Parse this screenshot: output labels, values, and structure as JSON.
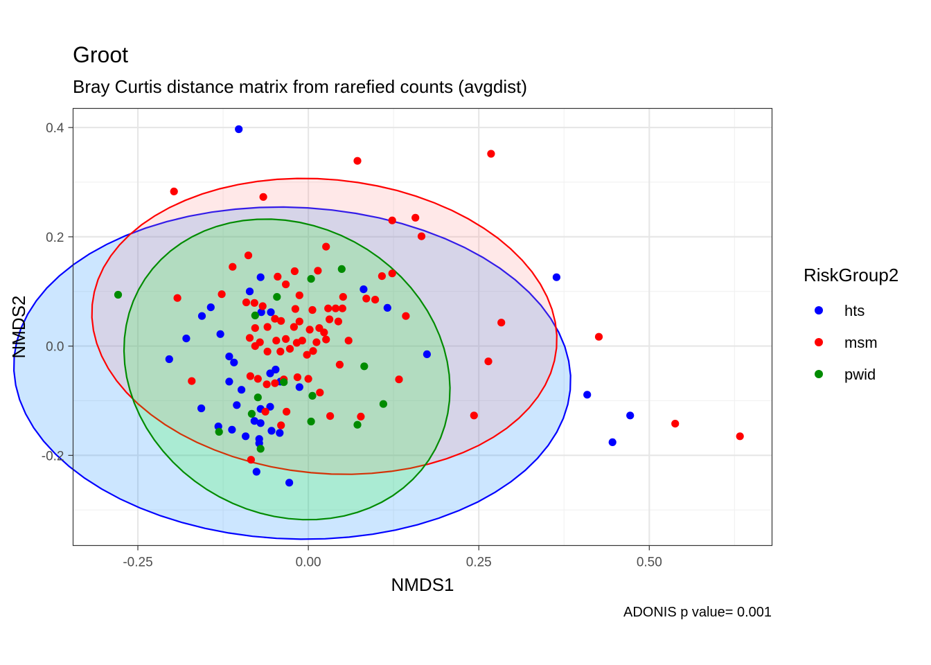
{
  "chart_data": {
    "type": "scatter",
    "title": "Groot",
    "subtitle": "Bray Curtis distance matrix from rarefied counts (avgdist)",
    "xlabel": "NMDS1",
    "ylabel": "NMDS2",
    "caption": "ADONIS p value= 0.001",
    "xlim": [
      -0.345,
      0.68
    ],
    "ylim": [
      -0.365,
      0.435
    ],
    "x_ticks": [
      {
        "value": -0.25,
        "label": "-0.25"
      },
      {
        "value": 0,
        "label": "0.00"
      },
      {
        "value": 0.25,
        "label": "0.25"
      },
      {
        "value": 0.5,
        "label": "0.50"
      }
    ],
    "y_ticks": [
      {
        "value": -0.2,
        "label": "-0.2"
      },
      {
        "value": 0,
        "label": "0.0"
      },
      {
        "value": 0.2,
        "label": "0.2"
      },
      {
        "value": 0.4,
        "label": "0.4"
      }
    ],
    "grid": true,
    "legend": {
      "title": "RiskGroup2",
      "position": "right"
    },
    "series": [
      {
        "name": "hts",
        "color": "#0000ff",
        "points": [
          [
            -0.102,
            0.397
          ],
          [
            -0.086,
            0.1
          ],
          [
            -0.07,
            0.126
          ],
          [
            -0.069,
            0.062
          ],
          [
            -0.055,
            0.062
          ],
          [
            -0.143,
            0.071
          ],
          [
            -0.156,
            0.055
          ],
          [
            -0.179,
            0.014
          ],
          [
            -0.204,
            -0.024
          ],
          [
            -0.129,
            0.022
          ],
          [
            -0.116,
            -0.019
          ],
          [
            -0.109,
            -0.03
          ],
          [
            -0.116,
            -0.065
          ],
          [
            -0.098,
            -0.08
          ],
          [
            -0.105,
            -0.108
          ],
          [
            -0.157,
            -0.114
          ],
          [
            -0.132,
            -0.147
          ],
          [
            -0.112,
            -0.153
          ],
          [
            -0.092,
            -0.165
          ],
          [
            -0.079,
            -0.137
          ],
          [
            -0.07,
            -0.141
          ],
          [
            -0.07,
            -0.115
          ],
          [
            -0.056,
            -0.111
          ],
          [
            -0.056,
            -0.05
          ],
          [
            -0.048,
            -0.043
          ],
          [
            -0.041,
            -0.065
          ],
          [
            -0.013,
            -0.075
          ],
          [
            -0.054,
            -0.155
          ],
          [
            -0.042,
            -0.159
          ],
          [
            -0.072,
            -0.17
          ],
          [
            -0.072,
            -0.178
          ],
          [
            -0.076,
            -0.23
          ],
          [
            -0.028,
            -0.25
          ],
          [
            0.081,
            0.104
          ],
          [
            0.116,
            0.07
          ],
          [
            0.174,
            -0.015
          ],
          [
            0.364,
            0.126
          ],
          [
            0.409,
            -0.089
          ],
          [
            0.472,
            -0.127
          ],
          [
            0.446,
            -0.176
          ]
        ]
      },
      {
        "name": "msm",
        "color": "#ff0000",
        "points": [
          [
            -0.197,
            0.283
          ],
          [
            -0.066,
            0.273
          ],
          [
            0.072,
            0.339
          ],
          [
            0.268,
            0.352
          ],
          [
            0.123,
            0.23
          ],
          [
            0.157,
            0.235
          ],
          [
            0.166,
            0.201
          ],
          [
            0.026,
            0.182
          ],
          [
            -0.111,
            0.145
          ],
          [
            -0.088,
            0.166
          ],
          [
            -0.192,
            0.088
          ],
          [
            -0.171,
            -0.064
          ],
          [
            -0.127,
            0.095
          ],
          [
            -0.091,
            0.08
          ],
          [
            -0.079,
            0.079
          ],
          [
            -0.067,
            0.073
          ],
          [
            -0.045,
            0.127
          ],
          [
            -0.033,
            0.113
          ],
          [
            -0.02,
            0.137
          ],
          [
            0.014,
            0.138
          ],
          [
            -0.013,
            0.093
          ],
          [
            0.006,
            0.066
          ],
          [
            0.029,
            0.069
          ],
          [
            0.04,
            0.069
          ],
          [
            0.05,
            0.069
          ],
          [
            0.051,
            0.09
          ],
          [
            0.085,
            0.087
          ],
          [
            0.098,
            0.085
          ],
          [
            0.108,
            0.128
          ],
          [
            0.123,
            0.133
          ],
          [
            0.143,
            0.055
          ],
          [
            -0.06,
            0.035
          ],
          [
            -0.049,
            0.05
          ],
          [
            -0.04,
            0.046
          ],
          [
            -0.021,
            0.035
          ],
          [
            -0.013,
            0.045
          ],
          [
            0.002,
            0.03
          ],
          [
            0.016,
            0.033
          ],
          [
            0.023,
            0.025
          ],
          [
            0.044,
            0.045
          ],
          [
            -0.086,
            0.015
          ],
          [
            -0.078,
            0.0
          ],
          [
            -0.071,
            0.007
          ],
          [
            -0.06,
            -0.01
          ],
          [
            -0.047,
            0.01
          ],
          [
            -0.041,
            -0.01
          ],
          [
            -0.033,
            0.013
          ],
          [
            -0.027,
            -0.005
          ],
          [
            -0.017,
            0.006
          ],
          [
            -0.009,
            0.01
          ],
          [
            -0.002,
            -0.016
          ],
          [
            0.007,
            -0.009
          ],
          [
            0.012,
            0.007
          ],
          [
            0.026,
            0.012
          ],
          [
            0.046,
            -0.034
          ],
          [
            0.059,
            0.01
          ],
          [
            -0.085,
            -0.055
          ],
          [
            -0.074,
            -0.06
          ],
          [
            -0.061,
            -0.07
          ],
          [
            -0.049,
            -0.068
          ],
          [
            -0.036,
            -0.061
          ],
          [
            -0.016,
            -0.057
          ],
          [
            0.0,
            -0.06
          ],
          [
            0.017,
            -0.085
          ],
          [
            -0.063,
            -0.12
          ],
          [
            -0.032,
            -0.12
          ],
          [
            -0.04,
            -0.145
          ],
          [
            0.032,
            -0.128
          ],
          [
            0.077,
            -0.129
          ],
          [
            -0.084,
            -0.208
          ],
          [
            0.133,
            -0.061
          ],
          [
            0.264,
            -0.028
          ],
          [
            0.243,
            -0.127
          ],
          [
            0.283,
            0.043
          ],
          [
            0.426,
            0.017
          ],
          [
            0.538,
            -0.142
          ],
          [
            0.633,
            -0.165
          ],
          [
            -0.078,
            0.033
          ],
          [
            -0.019,
            0.068
          ],
          [
            0.031,
            0.049
          ]
        ]
      },
      {
        "name": "pwid",
        "color": "#008b00",
        "points": [
          [
            -0.279,
            0.094
          ],
          [
            0.049,
            0.141
          ],
          [
            0.004,
            0.123
          ],
          [
            -0.046,
            0.09
          ],
          [
            -0.078,
            0.056
          ],
          [
            0.082,
            -0.037
          ],
          [
            0.006,
            -0.091
          ],
          [
            0.11,
            -0.106
          ],
          [
            0.072,
            -0.144
          ],
          [
            -0.074,
            -0.094
          ],
          [
            -0.036,
            -0.066
          ],
          [
            -0.083,
            -0.124
          ],
          [
            0.004,
            -0.138
          ],
          [
            -0.131,
            -0.157
          ],
          [
            -0.07,
            -0.188
          ]
        ]
      }
    ],
    "ellipses": [
      {
        "group": "hts",
        "fill": "#0080ff",
        "stroke": "#0000ff"
      },
      {
        "group": "msm",
        "fill": "#ff8a8a",
        "stroke": "#ff0000"
      },
      {
        "group": "pwid",
        "fill": "#22ff22",
        "stroke": "#008b00"
      }
    ]
  }
}
